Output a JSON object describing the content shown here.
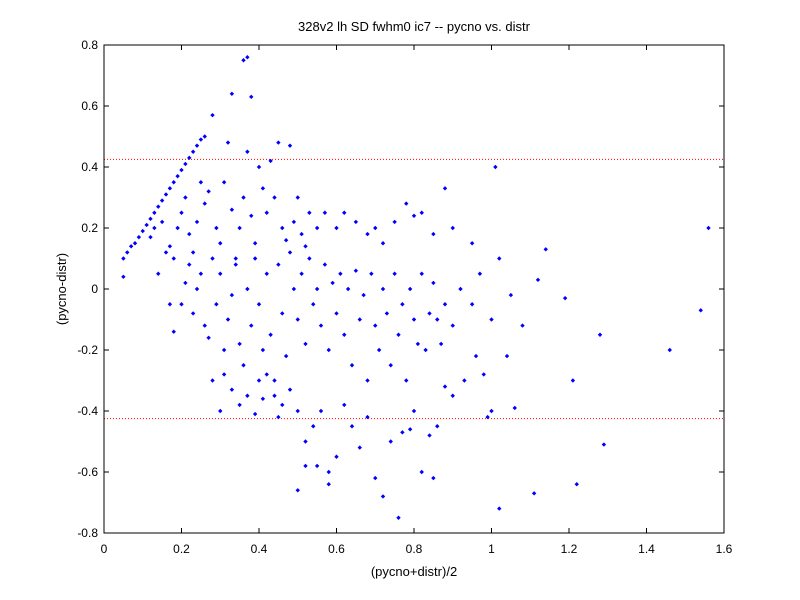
{
  "chart_data": {
    "type": "scatter",
    "title": "328v2 lh SD fwhm0 ic7 -- pycno vs. distr",
    "xlabel": "(pycno+distr)/2",
    "ylabel": "(pycno-distr)",
    "xlim": [
      0,
      1.6
    ],
    "ylim": [
      -0.8,
      0.8
    ],
    "x_ticks": [
      "0",
      "0.2",
      "0.4",
      "0.6",
      "0.8",
      "1",
      "1.2",
      "1.4",
      "1.6"
    ],
    "y_ticks": [
      "-0.8",
      "-0.6",
      "-0.4",
      "-0.2",
      "0",
      "0.2",
      "0.4",
      "0.6",
      "0.8"
    ],
    "grid": false,
    "colors": {
      "points": "#0000ff",
      "threshold": "#ff0000"
    },
    "thresholds": [
      0.425,
      -0.425
    ],
    "series": [
      {
        "points": [
          [
            0.05,
            0.04
          ],
          [
            0.05,
            0.1
          ],
          [
            0.06,
            0.12
          ],
          [
            0.07,
            0.14
          ],
          [
            0.08,
            0.15
          ],
          [
            0.09,
            0.17
          ],
          [
            0.1,
            0.19
          ],
          [
            0.11,
            0.21
          ],
          [
            0.12,
            0.23
          ],
          [
            0.13,
            0.25
          ],
          [
            0.14,
            0.27
          ],
          [
            0.15,
            0.29
          ],
          [
            0.16,
            0.31
          ],
          [
            0.17,
            0.33
          ],
          [
            0.18,
            0.35
          ],
          [
            0.19,
            0.37
          ],
          [
            0.2,
            0.39
          ],
          [
            0.21,
            0.41
          ],
          [
            0.22,
            0.43
          ],
          [
            0.23,
            0.45
          ],
          [
            0.24,
            0.47
          ],
          [
            0.25,
            0.49
          ],
          [
            0.26,
            0.5
          ],
          [
            0.28,
            0.57
          ],
          [
            0.33,
            0.64
          ],
          [
            0.36,
            0.75
          ],
          [
            0.37,
            0.76
          ],
          [
            0.38,
            0.63
          ],
          [
            0.12,
            0.17
          ],
          [
            0.13,
            0.2
          ],
          [
            0.15,
            0.22
          ],
          [
            0.16,
            0.12
          ],
          [
            0.17,
            0.14
          ],
          [
            0.18,
            0.1
          ],
          [
            0.19,
            0.2
          ],
          [
            0.2,
            0.25
          ],
          [
            0.21,
            0.3
          ],
          [
            0.22,
            0.18
          ],
          [
            0.23,
            0.12
          ],
          [
            0.24,
            0.22
          ],
          [
            0.25,
            0.35
          ],
          [
            0.26,
            0.28
          ],
          [
            0.27,
            0.32
          ],
          [
            0.29,
            0.2
          ],
          [
            0.3,
            0.15
          ],
          [
            0.31,
            0.35
          ],
          [
            0.32,
            0.48
          ],
          [
            0.33,
            0.26
          ],
          [
            0.34,
            0.1
          ],
          [
            0.35,
            0.2
          ],
          [
            0.36,
            0.3
          ],
          [
            0.37,
            0.45
          ],
          [
            0.38,
            0.24
          ],
          [
            0.39,
            0.15
          ],
          [
            0.4,
            0.4
          ],
          [
            0.41,
            0.33
          ],
          [
            0.42,
            0.25
          ],
          [
            0.43,
            0.42
          ],
          [
            0.44,
            0.3
          ],
          [
            0.45,
            0.48
          ],
          [
            0.46,
            0.2
          ],
          [
            0.47,
            0.16
          ],
          [
            0.48,
            0.47
          ],
          [
            0.49,
            0.22
          ],
          [
            0.5,
            0.3
          ],
          [
            0.51,
            0.18
          ],
          [
            0.52,
            0.14
          ],
          [
            0.53,
            0.25
          ],
          [
            0.55,
            0.2
          ],
          [
            0.57,
            0.25
          ],
          [
            0.6,
            0.2
          ],
          [
            0.62,
            0.25
          ],
          [
            0.65,
            0.22
          ],
          [
            0.68,
            0.18
          ],
          [
            0.7,
            0.2
          ],
          [
            0.72,
            0.15
          ],
          [
            0.75,
            0.22
          ],
          [
            0.78,
            0.28
          ],
          [
            0.8,
            0.24
          ],
          [
            0.82,
            0.25
          ],
          [
            0.85,
            0.18
          ],
          [
            0.88,
            0.33
          ],
          [
            0.9,
            0.2
          ],
          [
            0.95,
            0.15
          ],
          [
            1.01,
            0.4
          ],
          [
            0.14,
            0.05
          ],
          [
            0.17,
            -0.05
          ],
          [
            0.18,
            -0.14
          ],
          [
            0.2,
            -0.05
          ],
          [
            0.21,
            0.02
          ],
          [
            0.22,
            0.08
          ],
          [
            0.23,
            -0.08
          ],
          [
            0.24,
            0.0
          ],
          [
            0.25,
            0.05
          ],
          [
            0.26,
            -0.12
          ],
          [
            0.27,
            -0.16
          ],
          [
            0.28,
            0.1
          ],
          [
            0.29,
            -0.05
          ],
          [
            0.3,
            0.05
          ],
          [
            0.31,
            -0.2
          ],
          [
            0.32,
            -0.1
          ],
          [
            0.33,
            -0.02
          ],
          [
            0.34,
            0.08
          ],
          [
            0.35,
            -0.18
          ],
          [
            0.36,
            -0.25
          ],
          [
            0.37,
            0.0
          ],
          [
            0.38,
            -0.12
          ],
          [
            0.39,
            0.1
          ],
          [
            0.4,
            -0.05
          ],
          [
            0.41,
            -0.2
          ],
          [
            0.42,
            0.05
          ],
          [
            0.43,
            -0.15
          ],
          [
            0.44,
            -0.3
          ],
          [
            0.45,
            0.08
          ],
          [
            0.46,
            -0.08
          ],
          [
            0.47,
            -0.22
          ],
          [
            0.48,
            0.12
          ],
          [
            0.49,
            0.0
          ],
          [
            0.5,
            -0.1
          ],
          [
            0.51,
            0.05
          ],
          [
            0.52,
            -0.18
          ],
          [
            0.53,
            0.1
          ],
          [
            0.54,
            -0.05
          ],
          [
            0.55,
            0.0
          ],
          [
            0.56,
            -0.12
          ],
          [
            0.57,
            0.08
          ],
          [
            0.58,
            -0.2
          ],
          [
            0.59,
            0.02
          ],
          [
            0.6,
            -0.08
          ],
          [
            0.61,
            0.05
          ],
          [
            0.62,
            -0.15
          ],
          [
            0.63,
            0.0
          ],
          [
            0.64,
            -0.25
          ],
          [
            0.65,
            0.06
          ],
          [
            0.66,
            -0.1
          ],
          [
            0.67,
            -0.02
          ],
          [
            0.68,
            -0.3
          ],
          [
            0.69,
            0.05
          ],
          [
            0.7,
            -0.12
          ],
          [
            0.71,
            -0.2
          ],
          [
            0.72,
            0.0
          ],
          [
            0.73,
            -0.08
          ],
          [
            0.74,
            -0.25
          ],
          [
            0.75,
            0.05
          ],
          [
            0.76,
            -0.15
          ],
          [
            0.77,
            -0.05
          ],
          [
            0.78,
            -0.3
          ],
          [
            0.79,
            0.0
          ],
          [
            0.8,
            -0.1
          ],
          [
            0.81,
            -0.18
          ],
          [
            0.82,
            0.05
          ],
          [
            0.83,
            -0.2
          ],
          [
            0.84,
            -0.08
          ],
          [
            0.85,
            0.02
          ],
          [
            0.86,
            -0.1
          ],
          [
            0.87,
            -0.18
          ],
          [
            0.88,
            -0.05
          ],
          [
            0.9,
            -0.12
          ],
          [
            0.92,
            0.0
          ],
          [
            0.95,
            -0.05
          ],
          [
            0.97,
            0.05
          ],
          [
            1.0,
            -0.1
          ],
          [
            1.02,
            0.1
          ],
          [
            1.05,
            -0.02
          ],
          [
            1.08,
            -0.12
          ],
          [
            1.12,
            0.03
          ],
          [
            1.14,
            0.13
          ],
          [
            1.19,
            -0.03
          ],
          [
            1.28,
            -0.15
          ],
          [
            1.46,
            -0.2
          ],
          [
            1.54,
            -0.07
          ],
          [
            1.56,
            0.2
          ],
          [
            0.28,
            -0.3
          ],
          [
            0.3,
            -0.4
          ],
          [
            0.31,
            -0.28
          ],
          [
            0.33,
            -0.33
          ],
          [
            0.35,
            -0.38
          ],
          [
            0.37,
            -0.35
          ],
          [
            0.39,
            -0.41
          ],
          [
            0.4,
            -0.3
          ],
          [
            0.41,
            -0.36
          ],
          [
            0.42,
            -0.28
          ],
          [
            0.44,
            -0.35
          ],
          [
            0.45,
            -0.42
          ],
          [
            0.46,
            -0.38
          ],
          [
            0.48,
            -0.33
          ],
          [
            0.5,
            -0.4
          ],
          [
            0.52,
            -0.5
          ],
          [
            0.54,
            -0.45
          ],
          [
            0.55,
            -0.58
          ],
          [
            0.56,
            -0.4
          ],
          [
            0.58,
            -0.6
          ],
          [
            0.6,
            -0.55
          ],
          [
            0.62,
            -0.38
          ],
          [
            0.64,
            -0.45
          ],
          [
            0.66,
            -0.52
          ],
          [
            0.68,
            -0.42
          ],
          [
            0.7,
            -0.62
          ],
          [
            0.72,
            -0.68
          ],
          [
            0.74,
            -0.5
          ],
          [
            0.76,
            -0.75
          ],
          [
            0.77,
            -0.47
          ],
          [
            0.79,
            -0.46
          ],
          [
            0.8,
            -0.4
          ],
          [
            0.82,
            -0.6
          ],
          [
            0.84,
            -0.48
          ],
          [
            0.85,
            -0.62
          ],
          [
            0.86,
            -0.45
          ],
          [
            0.88,
            -0.32
          ],
          [
            0.5,
            -0.66
          ],
          [
            0.52,
            -0.58
          ],
          [
            0.58,
            -0.64
          ],
          [
            0.9,
            -0.35
          ],
          [
            0.93,
            -0.3
          ],
          [
            0.98,
            -0.28
          ],
          [
            1.0,
            -0.4
          ],
          [
            1.02,
            -0.72
          ],
          [
            1.06,
            -0.39
          ],
          [
            1.11,
            -0.67
          ],
          [
            1.22,
            -0.64
          ],
          [
            1.29,
            -0.51
          ],
          [
            1.21,
            -0.3
          ],
          [
            0.99,
            -0.42
          ],
          [
            0.96,
            -0.22
          ],
          [
            1.04,
            -0.22
          ]
        ]
      }
    ]
  }
}
